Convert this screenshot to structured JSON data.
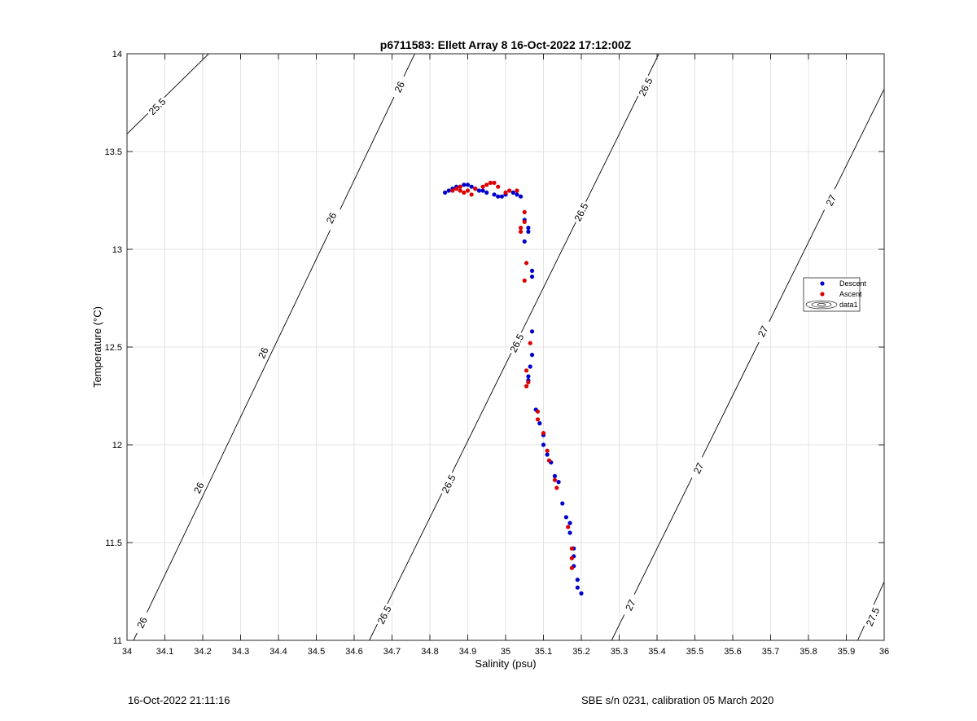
{
  "chart_data": {
    "type": "scatter",
    "title": "p6711583: Ellett Array 8 16-Oct-2022 17:12:00Z",
    "xlabel": "Salinity (psu)",
    "ylabel": "Temperature (°C)",
    "xlim": [
      34,
      36
    ],
    "ylim": [
      11,
      14
    ],
    "xticks": [
      "34",
      "34.1",
      "34.2",
      "34.3",
      "34.4",
      "34.5",
      "34.6",
      "34.7",
      "34.8",
      "34.9",
      "35",
      "35.1",
      "35.2",
      "35.3",
      "35.4",
      "35.5",
      "35.6",
      "35.7",
      "35.8",
      "35.9",
      "36"
    ],
    "yticks": [
      "11",
      "11.5",
      "12",
      "12.5",
      "13",
      "13.5",
      "14"
    ],
    "grid": true,
    "legend_position": "right",
    "legend": [
      "Descent",
      "Ascent",
      "data1"
    ],
    "series": [
      {
        "name": "Descent",
        "color": "#0000cc",
        "points": [
          [
            34.84,
            13.29
          ],
          [
            34.85,
            13.3
          ],
          [
            34.86,
            13.31
          ],
          [
            34.87,
            13.32
          ],
          [
            34.88,
            13.32
          ],
          [
            34.89,
            13.33
          ],
          [
            34.9,
            13.33
          ],
          [
            34.91,
            13.32
          ],
          [
            34.92,
            13.31
          ],
          [
            34.93,
            13.3
          ],
          [
            34.94,
            13.3
          ],
          [
            34.95,
            13.29
          ],
          [
            34.97,
            13.28
          ],
          [
            34.98,
            13.27
          ],
          [
            34.99,
            13.27
          ],
          [
            35.0,
            13.28
          ],
          [
            35.02,
            13.29
          ],
          [
            35.03,
            13.28
          ],
          [
            35.04,
            13.27
          ],
          [
            35.05,
            13.15
          ],
          [
            35.06,
            13.11
          ],
          [
            35.06,
            13.09
          ],
          [
            35.05,
            13.04
          ],
          [
            35.07,
            12.89
          ],
          [
            35.07,
            12.86
          ],
          [
            35.07,
            12.58
          ],
          [
            35.07,
            12.46
          ],
          [
            35.065,
            12.4
          ],
          [
            35.06,
            12.35
          ],
          [
            35.06,
            12.33
          ],
          [
            35.08,
            12.18
          ],
          [
            35.09,
            12.11
          ],
          [
            35.1,
            12.05
          ],
          [
            35.1,
            12.0
          ],
          [
            35.11,
            11.95
          ],
          [
            35.12,
            11.91
          ],
          [
            35.13,
            11.84
          ],
          [
            35.14,
            11.81
          ],
          [
            35.15,
            11.7
          ],
          [
            35.16,
            11.63
          ],
          [
            35.17,
            11.6
          ],
          [
            35.17,
            11.55
          ],
          [
            35.18,
            11.47
          ],
          [
            35.18,
            11.43
          ],
          [
            35.18,
            11.38
          ],
          [
            35.19,
            11.31
          ],
          [
            35.19,
            11.27
          ],
          [
            35.2,
            11.24
          ]
        ]
      },
      {
        "name": "Ascent",
        "color": "#dd0000",
        "points": [
          [
            34.86,
            13.3
          ],
          [
            34.87,
            13.31
          ],
          [
            34.88,
            13.32
          ],
          [
            34.88,
            13.3
          ],
          [
            34.89,
            13.29
          ],
          [
            34.9,
            13.3
          ],
          [
            34.91,
            13.28
          ],
          [
            34.92,
            13.31
          ],
          [
            34.94,
            13.32
          ],
          [
            34.95,
            13.33
          ],
          [
            34.96,
            13.34
          ],
          [
            34.97,
            13.34
          ],
          [
            34.98,
            13.32
          ],
          [
            35.0,
            13.29
          ],
          [
            35.01,
            13.3
          ],
          [
            35.03,
            13.3
          ],
          [
            35.05,
            13.19
          ],
          [
            35.05,
            13.14
          ],
          [
            35.04,
            13.11
          ],
          [
            35.04,
            13.09
          ],
          [
            35.055,
            12.93
          ],
          [
            35.05,
            12.84
          ],
          [
            35.065,
            12.52
          ],
          [
            35.055,
            12.38
          ],
          [
            35.055,
            12.3
          ],
          [
            35.06,
            12.32
          ],
          [
            35.085,
            12.17
          ],
          [
            35.085,
            12.13
          ],
          [
            35.1,
            12.06
          ],
          [
            35.11,
            11.97
          ],
          [
            35.115,
            11.92
          ],
          [
            35.13,
            11.82
          ],
          [
            35.135,
            11.78
          ],
          [
            35.165,
            11.58
          ],
          [
            35.175,
            11.47
          ],
          [
            35.175,
            11.42
          ],
          [
            35.175,
            11.37
          ]
        ]
      }
    ],
    "contour_labels": [
      "25.5",
      "26",
      "26.5",
      "27",
      "27.5"
    ]
  },
  "footer": {
    "left": "16-Oct-2022 21:11:16",
    "right": "SBE s/n 0231, calibration 05 March 2020"
  }
}
